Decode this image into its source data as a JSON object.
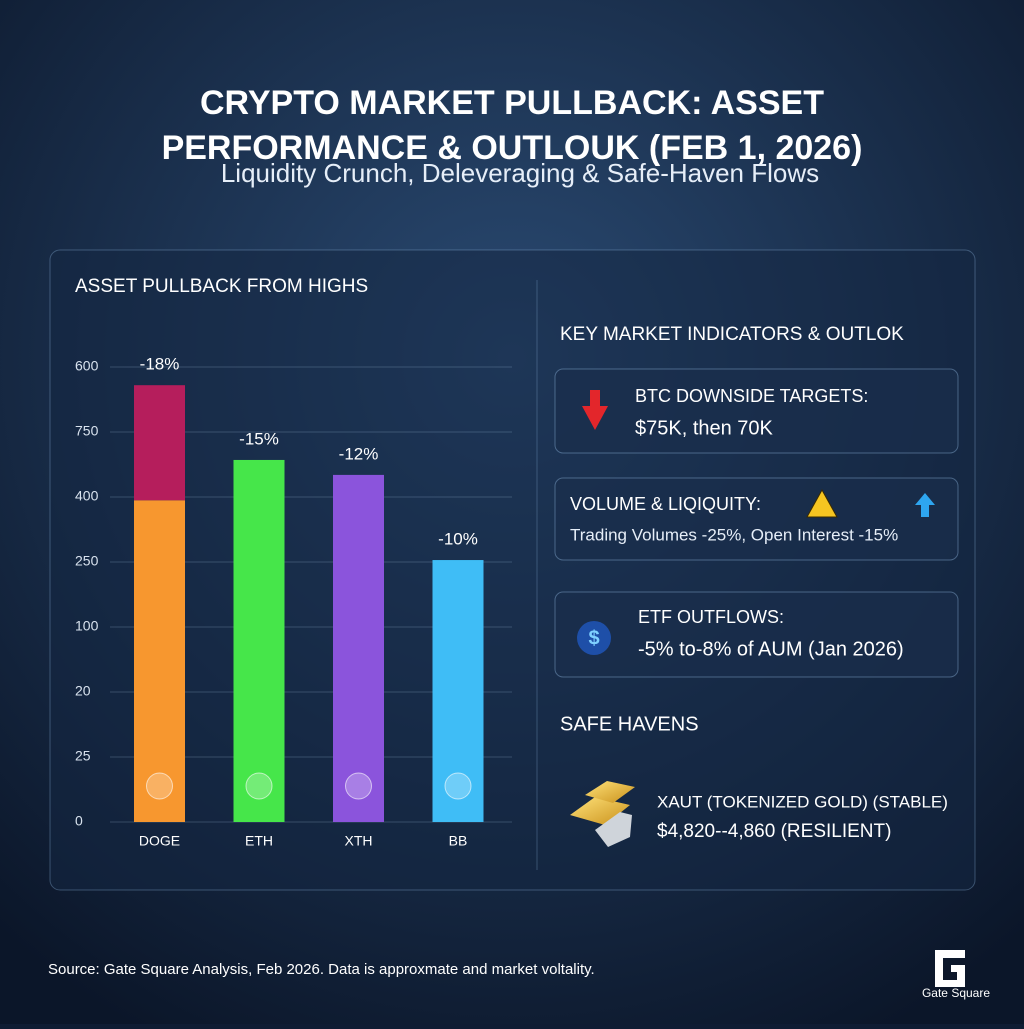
{
  "title_lines": [
    "CRYPTO MARKET PULLBACK: ASSET",
    "PERFORMANCE & OUTLOUK (FEB 1, 2026)"
  ],
  "subtitle": "Liquidity Crunch, Deleveraging & Safe-Haven Flows",
  "chart_data": {
    "type": "bar",
    "title": "ASSET PULLBACK FROM HIGHS",
    "categories": [
      "DOGE",
      "ETH",
      "XTH",
      "BB"
    ],
    "series": [
      {
        "colors": [
          "#f7972f",
          "#46e64a",
          "#8b54dc",
          "#3fbdf6"
        ],
        "values": [
          4.95,
          5.57,
          5.34,
          4.03
        ]
      },
      {
        "colors": [
          "#b51e5c",
          null,
          null,
          null
        ],
        "values": [
          1.77,
          null,
          null,
          null
        ]
      }
    ],
    "bar_labels": [
      "-18%",
      "-15%",
      "-12%",
      "-10%"
    ],
    "ylim": [
      0,
      7
    ],
    "yticks": [
      {
        "value": 0,
        "label": "0"
      },
      {
        "value": 1,
        "label": "25"
      },
      {
        "value": 2,
        "label": "20"
      },
      {
        "value": 3,
        "label": "100"
      },
      {
        "value": 4,
        "label": "250"
      },
      {
        "value": 5,
        "label": "400"
      },
      {
        "value": 6,
        "label": "750"
      },
      {
        "value": 7,
        "label": "600"
      }
    ],
    "grid": true
  },
  "indicators": {
    "title": "KEY MARKET INDICATORS & OUTLOK",
    "cards": [
      {
        "heading": "BTC DOWNSIDE TARGETS:",
        "text": "$75K, then 70K"
      },
      {
        "heading": "VOLUME & LIQIQUITY:",
        "text": "Trading Volumes -25%, Open Interest -15%"
      },
      {
        "heading": "ETF OUTFLOWS:",
        "text": "-5% to-8% of AUM (Jan 2026)"
      }
    ]
  },
  "safe_havens": {
    "title": "SAFE HAVENS",
    "line1": "XAUT (TOKENIZED GOLD) (STABLE)",
    "line2": "$4,820--4,860 (RESILIENT)"
  },
  "footer": "Source: Gate Square Analysis, Feb 2026. Data is approxmate and market voltality.",
  "brand": "Gate Square"
}
